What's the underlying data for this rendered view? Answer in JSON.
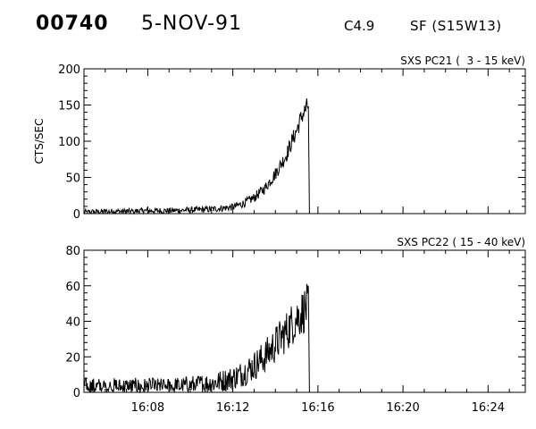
{
  "header": {
    "event_id": "00740",
    "date": "5-NOV-91",
    "flare_class": "C4.9",
    "location": "SF (S15W13)"
  },
  "chart_data": [
    {
      "type": "line",
      "title": "SXS PC21 (  3 - 15 keV)",
      "ylabel": "CTS/SEC",
      "xlabel": "",
      "xlim": [
        "16:05:00",
        "16:25:45"
      ],
      "ylim": [
        0,
        200
      ],
      "yticks": [
        0,
        50,
        100,
        150,
        200
      ],
      "xticks": [
        "16:08",
        "16:12",
        "16:16",
        "16:20",
        "16:24"
      ],
      "series": [
        {
          "color": "#000000",
          "x": [
            "16:05:00",
            "16:06:00",
            "16:07:00",
            "16:08:00",
            "16:09:00",
            "16:10:00",
            "16:11:00",
            "16:12:00",
            "16:12:30",
            "16:13:00",
            "16:13:30",
            "16:14:00",
            "16:14:30",
            "16:15:00",
            "16:15:15",
            "16:15:30",
            "16:15:33",
            "16:15:36"
          ],
          "values": [
            2,
            3,
            3,
            4,
            4,
            5,
            6,
            9,
            14,
            22,
            35,
            55,
            80,
            115,
            135,
            148,
            150,
            0
          ]
        }
      ]
    },
    {
      "type": "line",
      "title": "SXS PC22 ( 15 - 40 keV)",
      "ylabel": "",
      "xlabel": "",
      "xlim": [
        "16:05:00",
        "16:25:45"
      ],
      "ylim": [
        0,
        80
      ],
      "yticks": [
        0,
        20,
        40,
        60,
        80
      ],
      "xticks": [
        "16:08",
        "16:12",
        "16:16",
        "16:20",
        "16:24"
      ],
      "series": [
        {
          "color": "#000000",
          "x": [
            "16:05:00",
            "16:06:00",
            "16:07:00",
            "16:08:00",
            "16:09:00",
            "16:10:00",
            "16:11:00",
            "16:12:00",
            "16:12:30",
            "16:13:00",
            "16:13:30",
            "16:14:00",
            "16:14:30",
            "16:15:00",
            "16:15:15",
            "16:15:30",
            "16:15:33",
            "16:15:36"
          ],
          "values": [
            3,
            3,
            3,
            3,
            3,
            4,
            5,
            8,
            11,
            15,
            20,
            27,
            34,
            42,
            45,
            48,
            47,
            0
          ]
        }
      ]
    }
  ]
}
